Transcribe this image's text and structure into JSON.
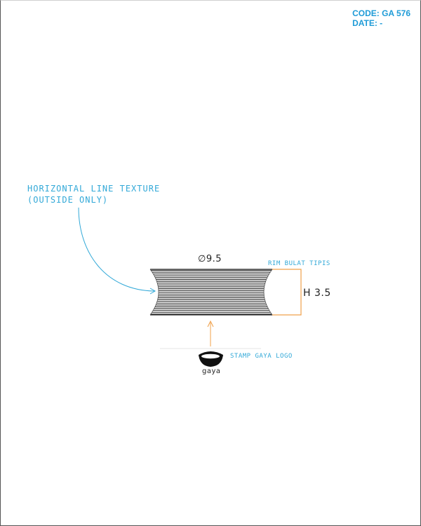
{
  "header": {
    "code": "CODE: GA 576",
    "date": "DATE: -"
  },
  "callouts": {
    "texture_line1": "HORIZONTAL LINE TEXTURE",
    "texture_line2": "(OUTSIDE ONLY)",
    "rim": "RIM BULAT TIPIS",
    "stamp": "STAMP GAYA LOGO"
  },
  "dimensions": {
    "diameter_symbol": "∅",
    "diameter": "9.5",
    "height": "H 3.5"
  },
  "logo": {
    "word": "gaya"
  },
  "colors": {
    "callout_blue": "#33a9d8",
    "header_blue": "#1e9bd7",
    "orange": "#f0a04a",
    "texture": "#3a3a3a"
  }
}
